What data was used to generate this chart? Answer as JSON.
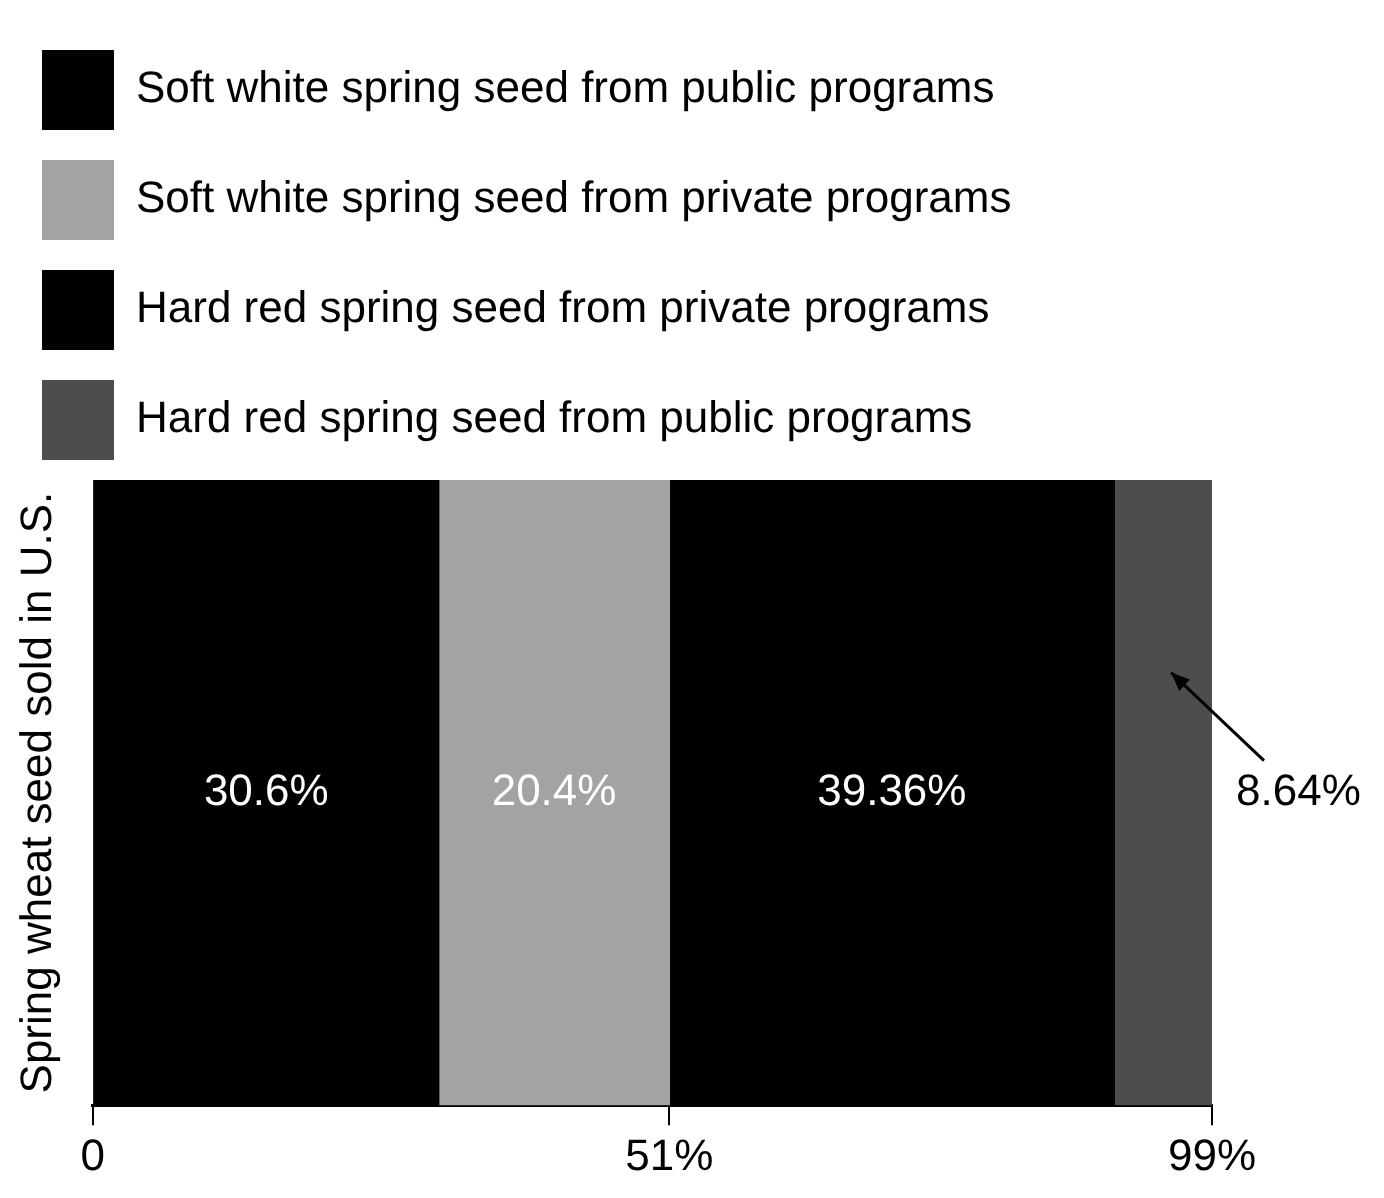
{
  "chart_data": {
    "type": "bar",
    "orientation": "horizontal",
    "stacked": true,
    "ylabel": "Spring wheat seed sold in U.S.",
    "categories": [
      null
    ],
    "series": [
      {
        "name": "Soft white spring seed from public programs",
        "color": "#000000",
        "values": [
          30.6
        ],
        "value_labels": [
          "30.6%"
        ]
      },
      {
        "name": "Soft white spring seed from private programs",
        "color": "#a3a3a3",
        "values": [
          20.4
        ],
        "value_labels": [
          "20.4%"
        ]
      },
      {
        "name": "Hard red spring seed from private programs",
        "color": "#000000",
        "values": [
          39.36
        ],
        "value_labels": [
          "39.36%"
        ]
      },
      {
        "name": "Hard red spring seed from public programs",
        "color": "#4d4d4d",
        "values": [
          8.64
        ],
        "value_labels": [
          "8.64%"
        ]
      }
    ],
    "xlim": [
      0,
      99
    ],
    "xticks": [
      0,
      {
        "value": 51,
        "label": "51%"
      },
      {
        "value": 99,
        "label": "99%"
      }
    ],
    "grid": false,
    "legend": "top"
  }
}
